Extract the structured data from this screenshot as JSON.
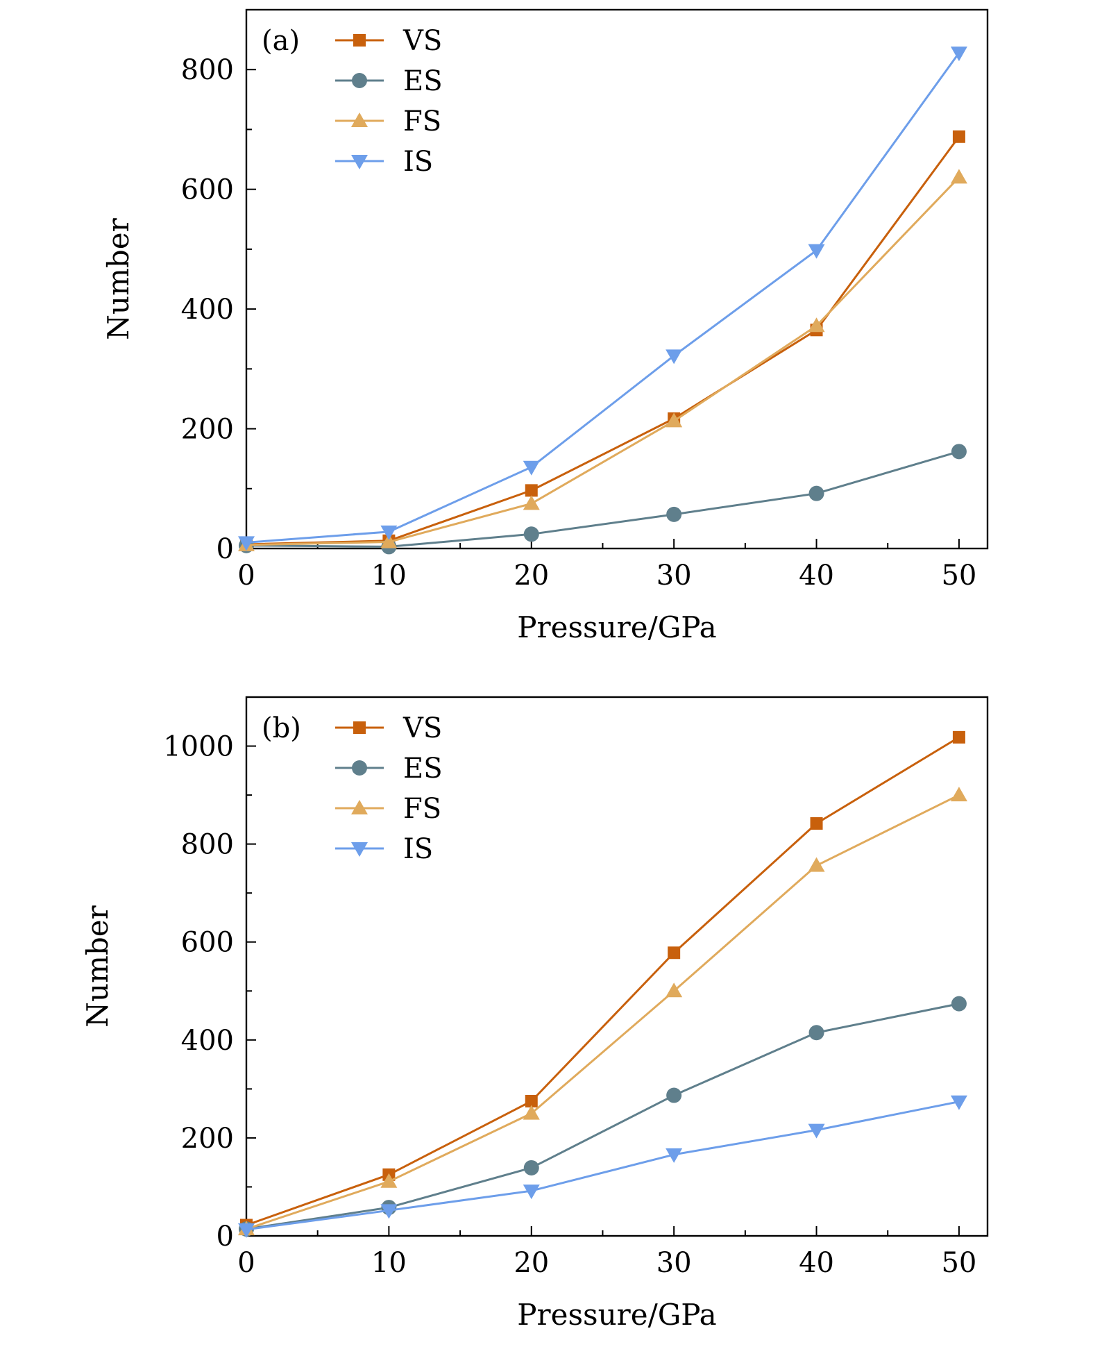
{
  "chart_data": [
    {
      "type": "line",
      "panel_label": "(a)",
      "xlabel": "Pressure/GPa",
      "ylabel": "Number",
      "x": [
        0,
        10,
        20,
        30,
        40,
        50
      ],
      "xlim": [
        0,
        52
      ],
      "ylim": [
        0,
        900
      ],
      "xticks": [
        0,
        10,
        20,
        30,
        40,
        50
      ],
      "yticks": [
        0,
        200,
        400,
        600,
        800
      ],
      "grid": false,
      "legend_position": "top-left",
      "series": [
        {
          "name": "VS",
          "color": "#c8600c",
          "marker": "square",
          "values": [
            7,
            13,
            97,
            217,
            365,
            688
          ]
        },
        {
          "name": "ES",
          "color": "#5f7f8c",
          "marker": "circle",
          "values": [
            5,
            3,
            24,
            57,
            92,
            162
          ]
        },
        {
          "name": "FS",
          "color": "#e0aa5c",
          "marker": "triangle-up",
          "values": [
            6,
            11,
            75,
            213,
            372,
            620
          ]
        },
        {
          "name": "IS",
          "color": "#6d9eea",
          "marker": "triangle-down",
          "values": [
            10,
            28,
            136,
            322,
            498,
            828
          ]
        }
      ]
    },
    {
      "type": "line",
      "panel_label": "(b)",
      "xlabel": "Pressure/GPa",
      "ylabel": "Number",
      "x": [
        0,
        10,
        20,
        30,
        40,
        50
      ],
      "xlim": [
        0,
        52
      ],
      "ylim": [
        0,
        1100
      ],
      "xticks": [
        0,
        10,
        20,
        30,
        40,
        50
      ],
      "yticks": [
        0,
        200,
        400,
        600,
        800,
        1000
      ],
      "grid": false,
      "legend_position": "top-left",
      "series": [
        {
          "name": "VS",
          "color": "#c8600c",
          "marker": "square",
          "values": [
            22,
            125,
            275,
            578,
            842,
            1018
          ]
        },
        {
          "name": "ES",
          "color": "#5f7f8c",
          "marker": "circle",
          "values": [
            14,
            58,
            139,
            287,
            415,
            474
          ]
        },
        {
          "name": "FS",
          "color": "#e0aa5c",
          "marker": "triangle-up",
          "values": [
            14,
            111,
            250,
            500,
            756,
            900
          ]
        },
        {
          "name": "IS",
          "color": "#6d9eea",
          "marker": "triangle-down",
          "values": [
            13,
            52,
            92,
            166,
            216,
            274
          ]
        }
      ]
    }
  ]
}
